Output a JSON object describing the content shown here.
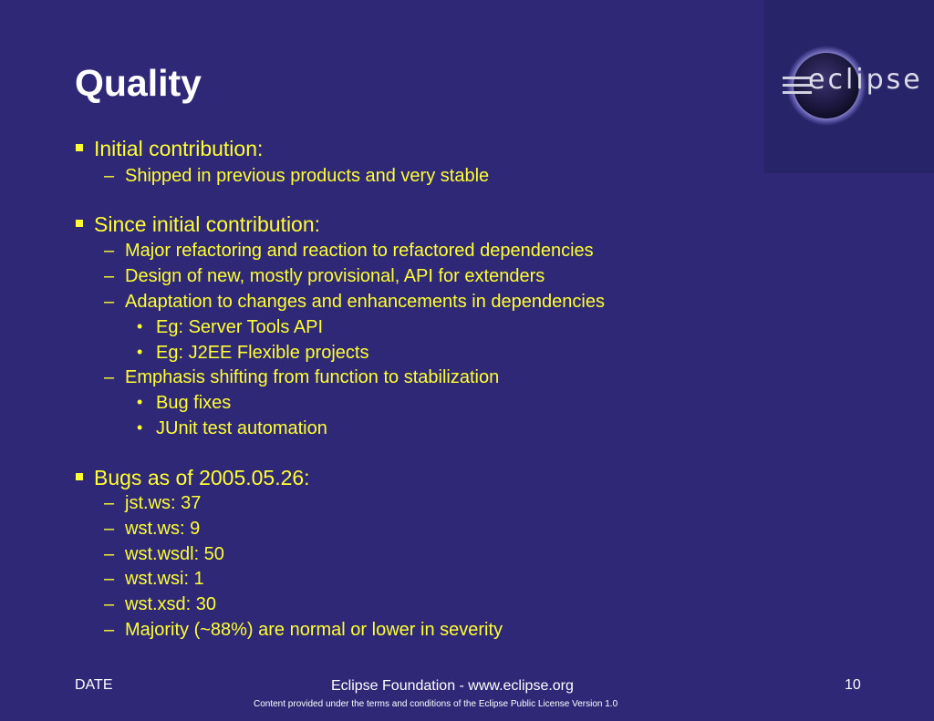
{
  "slide": {
    "title": "Quality",
    "logo_text": "eclipse",
    "bullets": [
      {
        "text": "Initial contribution:",
        "children": [
          {
            "text": "Shipped in previous products and very stable"
          }
        ]
      },
      {
        "text": "Since initial contribution:",
        "children": [
          {
            "text": "Major refactoring and reaction to refactored dependencies"
          },
          {
            "text": "Design of new, mostly provisional, API for extenders"
          },
          {
            "text": "Adaptation to changes and enhancements in dependencies",
            "children": [
              {
                "text": "Eg: Server Tools API"
              },
              {
                "text": "Eg: J2EE Flexible projects"
              }
            ]
          },
          {
            "text": "Emphasis shifting from function to stabilization",
            "children": [
              {
                "text": "Bug fixes"
              },
              {
                "text": "JUnit test automation"
              }
            ]
          }
        ]
      },
      {
        "text": "Bugs as of 2005.05.26:",
        "children": [
          {
            "text": "jst.ws: 37"
          },
          {
            "text": "wst.ws: 9"
          },
          {
            "text": "wst.wsdl: 50"
          },
          {
            "text": "wst.wsi: 1"
          },
          {
            "text": "wst.xsd: 30"
          },
          {
            "text": "Majority (~88%) are normal or lower in severity"
          }
        ]
      }
    ]
  },
  "footer": {
    "date": "DATE",
    "center": "Eclipse Foundation - www.eclipse.org",
    "license": "Content provided under the terms and conditions of the Eclipse Public License Version 1.0",
    "page_number": "10"
  },
  "colors": {
    "background": "#2e2877",
    "text_bullets": "#ffff33",
    "title": "#ffffff"
  }
}
